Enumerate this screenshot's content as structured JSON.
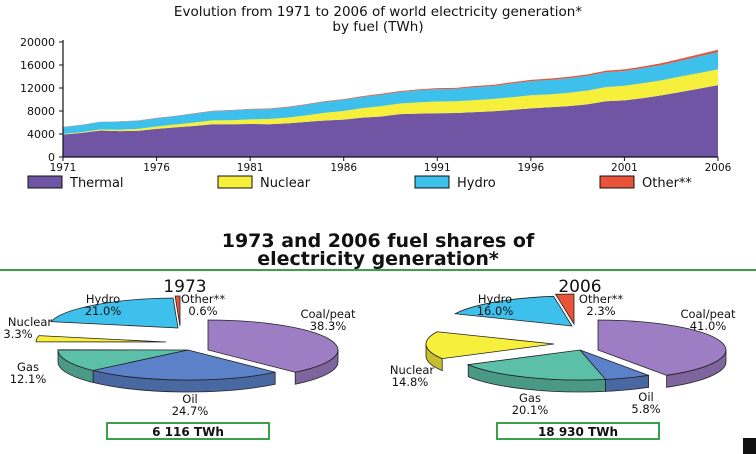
{
  "chart_data": [
    {
      "type": "area",
      "stacked": true,
      "title": "Evolution from 1971 to 2006 of world electricity generation*",
      "subtitle": "by fuel (TWh)",
      "ylim": [
        0,
        20000
      ],
      "yticks": [
        "0",
        "4000",
        "8000",
        "12000",
        "16000",
        "20000"
      ],
      "xticks": [
        "1971",
        "1976",
        "1981",
        "1986",
        "1991",
        "1996",
        "2001",
        "2006"
      ],
      "x": [
        1971,
        1972,
        1973,
        1974,
        1975,
        1976,
        1977,
        1978,
        1979,
        1980,
        1981,
        1982,
        1983,
        1984,
        1985,
        1986,
        1987,
        1988,
        1989,
        1990,
        1991,
        1992,
        1993,
        1994,
        1995,
        1996,
        1997,
        1998,
        1999,
        2000,
        2001,
        2002,
        2003,
        2004,
        2005,
        2006
      ],
      "series": [
        {
          "name": "Thermal",
          "color": "#6f55a3",
          "values": [
            3900,
            4200,
            4600,
            4500,
            4550,
            4900,
            5150,
            5400,
            5700,
            5700,
            5750,
            5700,
            5850,
            6100,
            6350,
            6500,
            6850,
            7050,
            7450,
            7550,
            7600,
            7650,
            7800,
            7950,
            8200,
            8450,
            8650,
            8850,
            9150,
            9700,
            9850,
            10250,
            10750,
            11300,
            11900,
            12500
          ]
        },
        {
          "name": "Nuclear",
          "color": "#f6ef3c",
          "values": [
            100,
            120,
            200,
            250,
            350,
            400,
            500,
            600,
            680,
            700,
            800,
            900,
            1000,
            1150,
            1350,
            1500,
            1650,
            1800,
            1850,
            1950,
            2050,
            2050,
            2100,
            2150,
            2200,
            2300,
            2250,
            2300,
            2400,
            2450,
            2550,
            2600,
            2600,
            2700,
            2700,
            2750
          ]
        },
        {
          "name": "Hydro",
          "color": "#3ec0ec",
          "values": [
            1200,
            1250,
            1300,
            1400,
            1400,
            1450,
            1450,
            1550,
            1600,
            1700,
            1750,
            1750,
            1800,
            1850,
            1900,
            1950,
            1950,
            2000,
            2000,
            2100,
            2150,
            2150,
            2250,
            2250,
            2400,
            2450,
            2500,
            2550,
            2550,
            2600,
            2550,
            2600,
            2650,
            2750,
            2900,
            3000
          ]
        },
        {
          "name": "Other**",
          "color": "#e8533a",
          "values": [
            30,
            30,
            35,
            40,
            40,
            45,
            50,
            55,
            60,
            70,
            75,
            80,
            90,
            100,
            110,
            120,
            130,
            140,
            150,
            160,
            170,
            180,
            190,
            200,
            210,
            220,
            230,
            240,
            250,
            260,
            280,
            300,
            320,
            340,
            370,
            400
          ]
        }
      ]
    },
    {
      "type": "pie",
      "title": "1973",
      "total_label": "6 116 TWh",
      "slices": [
        {
          "name": "Coal/peat",
          "value": 38.3,
          "label": "38.3%",
          "color": "#9d7ec4"
        },
        {
          "name": "Oil",
          "value": 24.7,
          "label": "24.7%",
          "color": "#5b82c9"
        },
        {
          "name": "Gas",
          "value": 12.1,
          "label": "12.1%",
          "color": "#5cbfa7"
        },
        {
          "name": "Nuclear",
          "value": 3.3,
          "label": "3.3%",
          "color": "#f6ef3c"
        },
        {
          "name": "Hydro",
          "value": 21.0,
          "label": "21.0%",
          "color": "#3ec0ec"
        },
        {
          "name": "Other**",
          "value": 0.6,
          "label": "0.6%",
          "color": "#e8533a"
        }
      ]
    },
    {
      "type": "pie",
      "title": "2006",
      "total_label": "18 930 TWh",
      "slices": [
        {
          "name": "Coal/peat",
          "value": 41.0,
          "label": "41.0%",
          "color": "#9d7ec4"
        },
        {
          "name": "Oil",
          "value": 5.8,
          "label": "5.8%",
          "color": "#5b82c9"
        },
        {
          "name": "Gas",
          "value": 20.1,
          "label": "20.1%",
          "color": "#5cbfa7"
        },
        {
          "name": "Nuclear",
          "value": 14.8,
          "label": "14.8%",
          "color": "#f6ef3c"
        },
        {
          "name": "Hydro",
          "value": 16.0,
          "label": "16.0%",
          "color": "#3ec0ec"
        },
        {
          "name": "Other**",
          "value": 2.3,
          "label": "2.3%",
          "color": "#e8533a"
        }
      ]
    }
  ],
  "section_title_line1": "1973 and 2006 fuel shares of",
  "section_title_line2": "electricity generation*",
  "accent_color": "#3aa04a"
}
